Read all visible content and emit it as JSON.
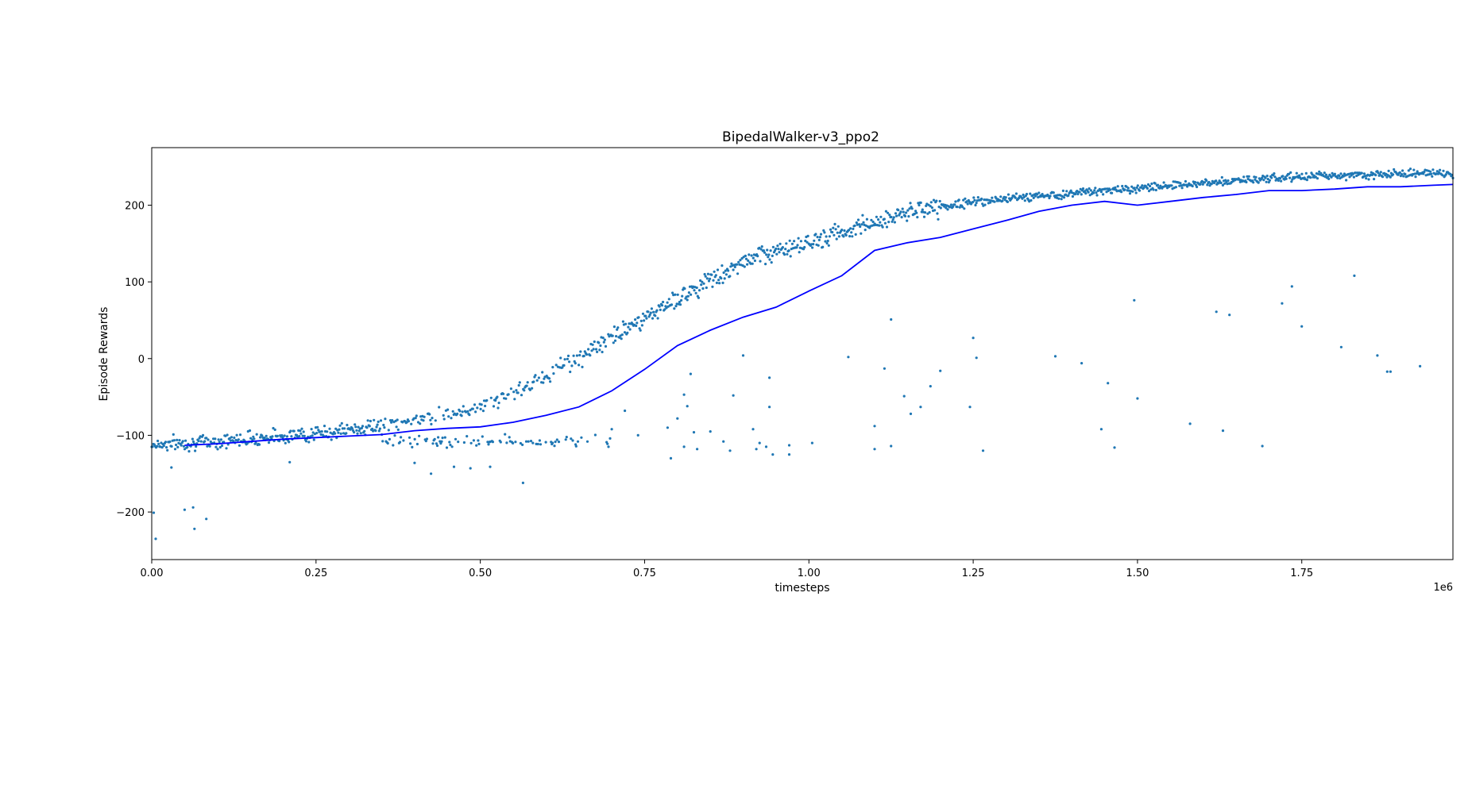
{
  "chart_data": {
    "type": "scatter",
    "title": "BipedalWalker-v3_ppo2",
    "xlabel": "timesteps",
    "ylabel": "Episode Rewards",
    "x_offset_text": "1e6",
    "xlim": [
      0,
      1.98
    ],
    "ylim": [
      -262,
      275
    ],
    "grid": false,
    "legend": "none",
    "xticks": [
      {
        "value": 0.0,
        "label": "0.00"
      },
      {
        "value": 0.25,
        "label": "0.25"
      },
      {
        "value": 0.5,
        "label": "0.50"
      },
      {
        "value": 0.75,
        "label": "0.75"
      },
      {
        "value": 1.0,
        "label": "1.00"
      },
      {
        "value": 1.25,
        "label": "1.25"
      },
      {
        "value": 1.5,
        "label": "1.50"
      },
      {
        "value": 1.75,
        "label": "1.75"
      }
    ],
    "yticks": [
      {
        "value": -200,
        "label": "−200"
      },
      {
        "value": -100,
        "label": "−100"
      },
      {
        "value": 0,
        "label": "0"
      },
      {
        "value": 100,
        "label": "100"
      },
      {
        "value": 200,
        "label": "200"
      }
    ],
    "series": [
      {
        "kind": "scatter",
        "color": "#1f77b4",
        "trend_points": [
          [
            0.0,
            -112
          ],
          [
            0.05,
            -110
          ],
          [
            0.1,
            -108
          ],
          [
            0.15,
            -104
          ],
          [
            0.2,
            -101
          ],
          [
            0.25,
            -98
          ],
          [
            0.3,
            -93
          ],
          [
            0.35,
            -87
          ],
          [
            0.4,
            -80
          ],
          [
            0.45,
            -72
          ],
          [
            0.5,
            -62
          ],
          [
            0.55,
            -45
          ],
          [
            0.6,
            -22
          ],
          [
            0.65,
            2
          ],
          [
            0.7,
            28
          ],
          [
            0.75,
            52
          ],
          [
            0.8,
            78
          ],
          [
            0.85,
            103
          ],
          [
            0.9,
            125
          ],
          [
            0.95,
            140
          ],
          [
            1.0,
            152
          ],
          [
            1.05,
            164
          ],
          [
            1.1,
            178
          ],
          [
            1.15,
            190
          ],
          [
            1.2,
            198
          ],
          [
            1.25,
            204
          ],
          [
            1.3,
            208
          ],
          [
            1.35,
            212
          ],
          [
            1.4,
            216
          ],
          [
            1.45,
            219
          ],
          [
            1.5,
            222
          ],
          [
            1.55,
            226
          ],
          [
            1.6,
            229
          ],
          [
            1.65,
            232
          ],
          [
            1.7,
            235
          ],
          [
            1.75,
            237
          ],
          [
            1.8,
            239
          ],
          [
            1.85,
            240
          ],
          [
            1.9,
            241
          ],
          [
            1.98,
            242
          ]
        ],
        "outliers": [
          [
            0.003,
            -201
          ],
          [
            0.006,
            -235
          ],
          [
            0.03,
            -142
          ],
          [
            0.05,
            -197
          ],
          [
            0.063,
            -194
          ],
          [
            0.065,
            -222
          ],
          [
            0.083,
            -209
          ],
          [
            0.21,
            -135
          ],
          [
            0.4,
            -136
          ],
          [
            0.425,
            -150
          ],
          [
            0.46,
            -141
          ],
          [
            0.485,
            -143
          ],
          [
            0.515,
            -141
          ],
          [
            0.565,
            -162
          ],
          [
            0.57,
            -108
          ],
          [
            0.58,
            -110
          ],
          [
            0.61,
            -110
          ],
          [
            0.645,
            -112
          ],
          [
            0.695,
            -115
          ],
          [
            0.7,
            -92
          ],
          [
            0.72,
            -68
          ],
          [
            0.74,
            -100
          ],
          [
            0.785,
            -90
          ],
          [
            0.79,
            -130
          ],
          [
            0.8,
            -78
          ],
          [
            0.81,
            -115
          ],
          [
            0.81,
            -47
          ],
          [
            0.815,
            -62
          ],
          [
            0.82,
            -20
          ],
          [
            0.825,
            -96
          ],
          [
            0.83,
            -118
          ],
          [
            0.85,
            -95
          ],
          [
            0.87,
            -108
          ],
          [
            0.88,
            -120
          ],
          [
            0.885,
            -48
          ],
          [
            0.9,
            4
          ],
          [
            0.915,
            -92
          ],
          [
            0.92,
            -118
          ],
          [
            0.925,
            -110
          ],
          [
            0.935,
            -115
          ],
          [
            0.94,
            -25
          ],
          [
            0.94,
            -63
          ],
          [
            0.945,
            -125
          ],
          [
            0.97,
            -113
          ],
          [
            0.97,
            -125
          ],
          [
            1.005,
            -110
          ],
          [
            1.06,
            2
          ],
          [
            1.1,
            -88
          ],
          [
            1.1,
            -118
          ],
          [
            1.115,
            -13
          ],
          [
            1.125,
            51
          ],
          [
            1.125,
            -114
          ],
          [
            1.145,
            -49
          ],
          [
            1.155,
            -72
          ],
          [
            1.17,
            -63
          ],
          [
            1.185,
            -36
          ],
          [
            1.2,
            -16
          ],
          [
            1.245,
            -63
          ],
          [
            1.25,
            27
          ],
          [
            1.255,
            1
          ],
          [
            1.265,
            -120
          ],
          [
            1.375,
            3
          ],
          [
            1.415,
            -6
          ],
          [
            1.445,
            -92
          ],
          [
            1.455,
            -32
          ],
          [
            1.465,
            -116
          ],
          [
            1.495,
            76
          ],
          [
            1.5,
            -52
          ],
          [
            1.58,
            -85
          ],
          [
            1.62,
            61
          ],
          [
            1.63,
            -94
          ],
          [
            1.64,
            57
          ],
          [
            1.69,
            -114
          ],
          [
            1.72,
            72
          ],
          [
            1.735,
            94
          ],
          [
            1.75,
            42
          ],
          [
            1.81,
            15
          ],
          [
            1.83,
            108
          ],
          [
            1.865,
            4
          ],
          [
            1.88,
            -17
          ],
          [
            1.885,
            -17
          ],
          [
            1.93,
            -10
          ]
        ]
      },
      {
        "kind": "line",
        "color": "#0000ff",
        "x": [
          0.05,
          0.1,
          0.15,
          0.2,
          0.25,
          0.3,
          0.35,
          0.4,
          0.45,
          0.5,
          0.55,
          0.6,
          0.65,
          0.7,
          0.75,
          0.8,
          0.85,
          0.9,
          0.95,
          1.0,
          1.05,
          1.1,
          1.15,
          1.2,
          1.25,
          1.3,
          1.35,
          1.4,
          1.45,
          1.5,
          1.55,
          1.6,
          1.65,
          1.7,
          1.75,
          1.8,
          1.85,
          1.9,
          1.95,
          1.98
        ],
        "y": [
          -113,
          -111,
          -108,
          -105,
          -103,
          -101,
          -99,
          -94,
          -91,
          -89,
          -83,
          -74,
          -63,
          -42,
          -14,
          17,
          37,
          54,
          67,
          88,
          108,
          141,
          151,
          158,
          169,
          180,
          192,
          200,
          205,
          200,
          205,
          210,
          214,
          219,
          219,
          221,
          224,
          224,
          226,
          227
        ]
      }
    ]
  }
}
